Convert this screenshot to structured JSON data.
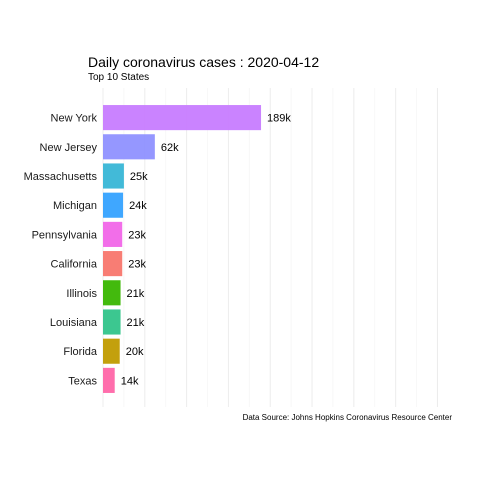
{
  "chart_data": {
    "type": "bar",
    "orientation": "horizontal",
    "title": "Daily coronavirus cases : 2020-04-12",
    "subtitle": "Top 10 States",
    "caption": "Data Source: Johns Hopkins Coronavirus Resource Center",
    "categories": [
      "New York",
      "New Jersey",
      "Massachusetts",
      "Michigan",
      "Pennsylvania",
      "California",
      "Illinois",
      "Louisiana",
      "Florida",
      "Texas"
    ],
    "values": [
      189000,
      62000,
      25000,
      24000,
      23000,
      23000,
      21000,
      21000,
      20000,
      14000
    ],
    "value_labels": [
      "189k",
      "62k",
      "25k",
      "24k",
      "23k",
      "23k",
      "21k",
      "21k",
      "20k",
      "14k"
    ],
    "colors": [
      "#C77CFF",
      "#8F91FF",
      "#38B6D6",
      "#35A2FF",
      "#F166E8",
      "#F8766D",
      "#39B600",
      "#31C48A",
      "#C09B00",
      "#FF66A8"
    ],
    "xlim": [
      0,
      415000
    ],
    "grid": true,
    "legend": "none"
  }
}
